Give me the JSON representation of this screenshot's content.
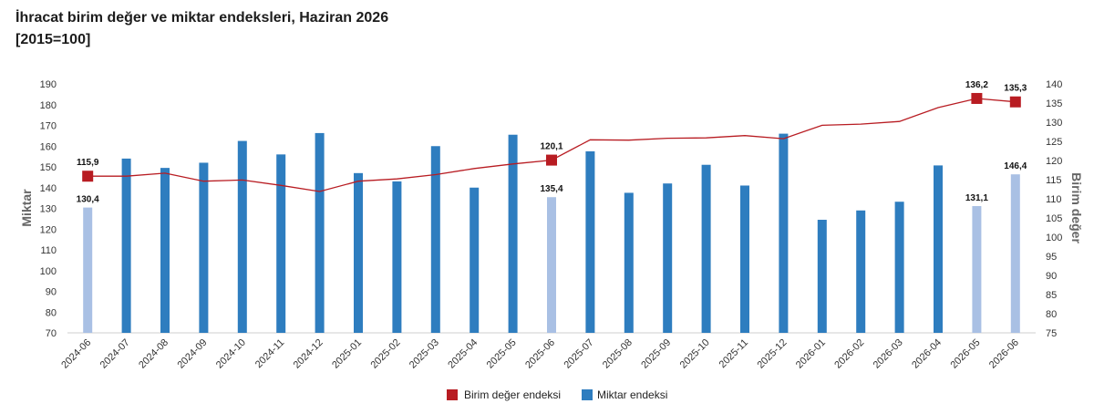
{
  "title": {
    "line1": "İhracat birim değer ve miktar endeksleri, Haziran 2026",
    "line2": "[2015=100]"
  },
  "chart_data": {
    "type": "bar+line",
    "categories": [
      "2024-06",
      "2024-07",
      "2024-08",
      "2024-09",
      "2024-10",
      "2024-11",
      "2024-12",
      "2025-01",
      "2025-02",
      "2025-03",
      "2025-04",
      "2025-05",
      "2025-06",
      "2025-07",
      "2025-08",
      "2025-09",
      "2025-10",
      "2025-11",
      "2025-12",
      "2026-01",
      "2026-02",
      "2026-03",
      "2026-04",
      "2026-05",
      "2026-06"
    ],
    "left_axis": {
      "label": "Miktar",
      "range": [
        70,
        190
      ],
      "ticks": [
        70,
        80,
        90,
        100,
        110,
        120,
        130,
        140,
        150,
        160,
        170,
        180,
        190
      ]
    },
    "right_axis": {
      "label": "Birim değer",
      "range": [
        75,
        140
      ],
      "ticks": [
        75,
        80,
        85,
        90,
        95,
        100,
        105,
        110,
        115,
        120,
        125,
        130,
        135,
        140
      ]
    },
    "bar_series": {
      "name": "Miktar endeksi",
      "axis": "left",
      "color": "#2e7dbf",
      "highlight_color": "#a9c0e4",
      "values": [
        130.4,
        154,
        149.5,
        152,
        162.5,
        156,
        166.3,
        147,
        143,
        160,
        140,
        165.5,
        135.4,
        157.5,
        137.5,
        142,
        151,
        141,
        166,
        124.5,
        129,
        133.2,
        150.7,
        131.1,
        146.4
      ],
      "highlighted": [
        "2024-06",
        "2025-06",
        "2026-05",
        "2026-06"
      ]
    },
    "line_series": {
      "name": "Birim değer endeksi",
      "axis": "right",
      "color": "#b81c22",
      "values": [
        115.9,
        115.9,
        116.7,
        114.6,
        114.9,
        113.5,
        111.9,
        114.6,
        115.2,
        116.3,
        117.9,
        119.1,
        120.1,
        125.4,
        125.3,
        125.8,
        125.9,
        126.5,
        125.7,
        129.2,
        129.5,
        130.2,
        133.8,
        136.2,
        135.3
      ],
      "markers": [
        "2024-06",
        "2025-06",
        "2026-05",
        "2026-06"
      ]
    },
    "data_labels": {
      "bars": {
        "2024-06": "130,4",
        "2025-06": "135,4",
        "2026-05": "131,1",
        "2026-06": "146,4"
      },
      "line": {
        "2024-06": "115,9",
        "2025-06": "120,1",
        "2026-05": "136,2",
        "2026-06": "135,3"
      }
    },
    "legend": {
      "position": "bottom",
      "items": [
        {
          "label": "Birim değer endeksi",
          "color": "#b81c22"
        },
        {
          "label": "Miktar endeksi",
          "color": "#2e7dbf"
        }
      ]
    },
    "grid": false
  }
}
